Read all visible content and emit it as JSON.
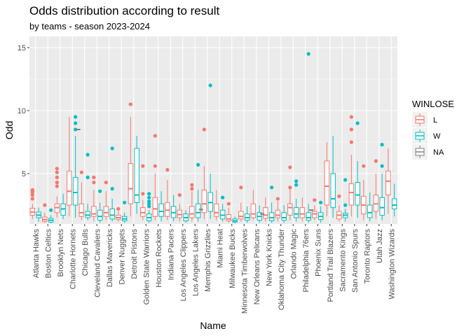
{
  "chart_data": {
    "type": "boxplot",
    "title": "Odds distribution according to result",
    "subtitle": "by teams - season 2023-2024",
    "xlabel": "Name",
    "ylabel": "Odd",
    "ylim": [
      1,
      15
    ],
    "y_ticks": [
      5,
      10,
      15
    ],
    "grid": true,
    "legend": {
      "title": "WINLOSE",
      "position": "right"
    },
    "colors": {
      "L": "#F8766D",
      "W": "#00BFC4",
      "NA": "#7F7F7F",
      "panel": "#EBEBEB",
      "grid": "#FFFFFF"
    },
    "categories": [
      "Atlanta Hawks",
      "Boston Celtics",
      "Brooklyn Nets",
      "Charlotte Hornets",
      "Chicago Bulls",
      "Cleveland Cavaliers",
      "Dallas Mavericks",
      "Denver Nuggets",
      "Detroit Pistons",
      "Golden State Warriors",
      "Houston Rockets",
      "Indiana Pacers",
      "Los Angeles Clippers",
      "Los Angeles Lakers",
      "Memphis Grizzlies",
      "Miami Heat",
      "Milwaukee Bucks",
      "Minnesota Timberwolves",
      "New Orleans Pelicans",
      "New York Knicks",
      "Oklahoma City Thunder",
      "Orlando Magic",
      "Philadelphia 76ers",
      "Phoenix Suns",
      "Portland Trail Blazers",
      "Sacramento Kings",
      "San Antonio Spurs",
      "Toronto Raptors",
      "Utah Jazz",
      "Washington Wizards"
    ],
    "series": [
      {
        "name": "L",
        "boxes": [
          {
            "whisk_lo": 1.4,
            "q1": 1.7,
            "med": 1.95,
            "q3": 2.25,
            "whisk_hi": 2.6,
            "outliers": [
              3.0,
              3.3,
              3.5,
              3.6,
              3.7
            ]
          },
          {
            "whisk_lo": 1.1,
            "q1": 1.2,
            "med": 1.35,
            "q3": 1.55,
            "whisk_hi": 1.9,
            "outliers": [
              2.5
            ]
          },
          {
            "whisk_lo": 1.5,
            "q1": 1.9,
            "med": 2.3,
            "q3": 2.6,
            "whisk_hi": 3.2,
            "outliers": [
              4.0,
              4.3,
              4.7,
              5.1,
              5.4
            ]
          },
          {
            "whisk_lo": 1.6,
            "q1": 2.5,
            "med": 3.6,
            "q3": 5.2,
            "whisk_hi": 9.5,
            "outliers": []
          },
          {
            "whisk_lo": 1.3,
            "q1": 1.6,
            "med": 1.9,
            "q3": 2.6,
            "whisk_hi": 4.3,
            "outliers": [
              5.1
            ]
          },
          {
            "whisk_lo": 1.2,
            "q1": 1.6,
            "med": 1.8,
            "q3": 2.4,
            "whisk_hi": 3.7,
            "outliers": [
              4.3,
              4.7
            ]
          },
          {
            "whisk_lo": 1.3,
            "q1": 1.6,
            "med": 1.9,
            "q3": 2.4,
            "whisk_hi": 3.6,
            "outliers": [
              4.3
            ]
          },
          {
            "whisk_lo": 1.2,
            "q1": 1.35,
            "med": 1.5,
            "q3": 1.7,
            "whisk_hi": 2.0,
            "outliers": [
              2.2
            ]
          },
          {
            "whisk_lo": 1.6,
            "q1": 2.6,
            "med": 3.8,
            "q3": 5.8,
            "whisk_hi": 9.5,
            "outliers": [
              10.5
            ]
          },
          {
            "whisk_lo": 1.3,
            "q1": 1.6,
            "med": 1.9,
            "q3": 2.3,
            "whisk_hi": 2.9,
            "outliers": [
              3.4,
              5.6
            ]
          },
          {
            "whisk_lo": 1.3,
            "q1": 1.6,
            "med": 2.2,
            "q3": 3.1,
            "whisk_hi": 5.0,
            "outliers": [
              5.6,
              8.0
            ]
          },
          {
            "whisk_lo": 1.3,
            "q1": 1.6,
            "med": 2.1,
            "q3": 2.7,
            "whisk_hi": 4.5,
            "outliers": [
              5.3
            ]
          },
          {
            "whisk_lo": 1.2,
            "q1": 1.5,
            "med": 1.75,
            "q3": 2.1,
            "whisk_hi": 2.6,
            "outliers": [
              3.3
            ]
          },
          {
            "whisk_lo": 1.2,
            "q1": 1.5,
            "med": 1.8,
            "q3": 2.4,
            "whisk_hi": 3.6,
            "outliers": [
              3.8,
              4.1
            ]
          },
          {
            "whisk_lo": 1.4,
            "q1": 1.9,
            "med": 2.6,
            "q3": 3.7,
            "whisk_hi": 5.6,
            "outliers": [
              8.5
            ]
          },
          {
            "whisk_lo": 1.3,
            "q1": 1.6,
            "med": 1.9,
            "q3": 2.6,
            "whisk_hi": 3.7,
            "outliers": []
          },
          {
            "whisk_lo": 1.1,
            "q1": 1.25,
            "med": 1.4,
            "q3": 1.75,
            "whisk_hi": 2.3,
            "outliers": [
              2.6
            ]
          },
          {
            "whisk_lo": 1.2,
            "q1": 1.4,
            "med": 1.6,
            "q3": 2.0,
            "whisk_hi": 2.7,
            "outliers": [
              3.9
            ]
          },
          {
            "whisk_lo": 1.3,
            "q1": 1.5,
            "med": 1.8,
            "q3": 2.6,
            "whisk_hi": 3.7,
            "outliers": []
          },
          {
            "whisk_lo": 1.2,
            "q1": 1.45,
            "med": 1.7,
            "q3": 2.3,
            "whisk_hi": 3.1,
            "outliers": []
          },
          {
            "whisk_lo": 1.2,
            "q1": 1.5,
            "med": 1.7,
            "q3": 2.1,
            "whisk_hi": 2.8,
            "outliers": [
              3.0
            ]
          },
          {
            "whisk_lo": 1.3,
            "q1": 1.7,
            "med": 2.3,
            "q3": 2.6,
            "whisk_hi": 3.8,
            "outliers": [
              3.9,
              5.5
            ]
          },
          {
            "whisk_lo": 1.2,
            "q1": 1.5,
            "med": 1.8,
            "q3": 2.3,
            "whisk_hi": 3.1,
            "outliers": []
          },
          {
            "whisk_lo": 1.3,
            "q1": 1.5,
            "med": 1.8,
            "q3": 2.0,
            "whisk_hi": 2.5,
            "outliers": [
              2.9
            ]
          },
          {
            "whisk_lo": 1.6,
            "q1": 2.5,
            "med": 4.0,
            "q3": 6.0,
            "whisk_hi": 7.5,
            "outliers": []
          },
          {
            "whisk_lo": 1.2,
            "q1": 1.4,
            "med": 1.7,
            "q3": 2.0,
            "whisk_hi": 2.5,
            "outliers": [
              3.2
            ]
          },
          {
            "whisk_lo": 1.6,
            "q1": 2.5,
            "med": 3.5,
            "q3": 4.2,
            "whisk_hi": 6.5,
            "outliers": [
              7.5,
              8.5,
              9.5
            ]
          },
          {
            "whisk_lo": 1.3,
            "q1": 1.8,
            "med": 2.5,
            "q3": 3.2,
            "whisk_hi": 4.5,
            "outliers": [
              5.6
            ]
          },
          {
            "whisk_lo": 1.4,
            "q1": 2.0,
            "med": 2.6,
            "q3": 3.3,
            "whisk_hi": 5.0,
            "outliers": [
              6.0
            ]
          },
          {
            "whisk_lo": 1.8,
            "q1": 3.3,
            "med": 4.4,
            "q3": 5.2,
            "whisk_hi": 7.0,
            "outliers": []
          }
        ]
      },
      {
        "name": "W",
        "boxes": [
          {
            "whisk_lo": 1.2,
            "q1": 1.5,
            "med": 1.7,
            "q3": 1.95,
            "whisk_hi": 2.3,
            "outliers": []
          },
          {
            "whisk_lo": 1.05,
            "q1": 1.15,
            "med": 1.3,
            "q3": 1.45,
            "whisk_hi": 1.7,
            "outliers": [
              2.1
            ]
          },
          {
            "whisk_lo": 1.4,
            "q1": 1.7,
            "med": 2.2,
            "q3": 2.6,
            "whisk_hi": 3.4,
            "outliers": []
          },
          {
            "whisk_lo": 1.5,
            "q1": 2.5,
            "med": 3.5,
            "q3": 4.7,
            "whisk_hi": 8.0,
            "outliers": [
              8.5,
              9.0,
              9.5
            ]
          },
          {
            "whisk_lo": 1.3,
            "q1": 1.5,
            "med": 1.7,
            "q3": 2.0,
            "whisk_hi": 2.6,
            "outliers": [
              4.7,
              6.5
            ]
          },
          {
            "whisk_lo": 1.1,
            "q1": 1.3,
            "med": 1.6,
            "q3": 2.1,
            "whisk_hi": 2.7,
            "outliers": [
              3.6
            ]
          },
          {
            "whisk_lo": 1.2,
            "q1": 1.4,
            "med": 1.7,
            "q3": 2.2,
            "whisk_hi": 3.0,
            "outliers": [
              3.8,
              7.0
            ]
          },
          {
            "whisk_lo": 1.1,
            "q1": 1.25,
            "med": 1.4,
            "q3": 1.6,
            "whisk_hi": 1.9,
            "outliers": [
              2.7
            ]
          },
          {
            "whisk_lo": 1.8,
            "q1": 2.7,
            "med": 3.3,
            "q3": 7.0,
            "whisk_hi": 8.0,
            "outliers": []
          },
          {
            "whisk_lo": 1.1,
            "q1": 1.25,
            "med": 1.5,
            "q3": 1.8,
            "whisk_hi": 2.1,
            "outliers": [
              2.4,
              2.6,
              2.8,
              3.1,
              3.4
            ]
          },
          {
            "whisk_lo": 1.2,
            "q1": 1.6,
            "med": 2.0,
            "q3": 2.6,
            "whisk_hi": 3.6,
            "outliers": []
          },
          {
            "whisk_lo": 1.2,
            "q1": 1.5,
            "med": 1.9,
            "q3": 2.4,
            "whisk_hi": 3.3,
            "outliers": []
          },
          {
            "whisk_lo": 1.1,
            "q1": 1.25,
            "med": 1.5,
            "q3": 1.8,
            "whisk_hi": 2.1,
            "outliers": []
          },
          {
            "whisk_lo": 1.2,
            "q1": 1.5,
            "med": 1.9,
            "q3": 2.6,
            "whisk_hi": 3.7,
            "outliers": [
              5.7
            ]
          },
          {
            "whisk_lo": 1.4,
            "q1": 2.0,
            "med": 2.7,
            "q3": 3.5,
            "whisk_hi": 5.0,
            "outliers": [
              12.0
            ]
          },
          {
            "whisk_lo": 1.2,
            "q1": 1.4,
            "med": 1.7,
            "q3": 2.1,
            "whisk_hi": 2.6,
            "outliers": [
              3.1
            ]
          },
          {
            "whisk_lo": 1.05,
            "q1": 1.15,
            "med": 1.25,
            "q3": 1.4,
            "whisk_hi": 1.6,
            "outliers": []
          },
          {
            "whisk_lo": 1.1,
            "q1": 1.3,
            "med": 1.5,
            "q3": 1.8,
            "whisk_hi": 2.4,
            "outliers": []
          },
          {
            "whisk_lo": 1.1,
            "q1": 1.3,
            "med": 1.6,
            "q3": 1.9,
            "whisk_hi": 2.5,
            "outliers": []
          },
          {
            "whisk_lo": 1.1,
            "q1": 1.25,
            "med": 1.5,
            "q3": 1.9,
            "whisk_hi": 2.7,
            "outliers": [
              3.9
            ]
          },
          {
            "whisk_lo": 1.1,
            "q1": 1.3,
            "med": 1.5,
            "q3": 1.9,
            "whisk_hi": 2.5,
            "outliers": []
          },
          {
            "whisk_lo": 1.2,
            "q1": 1.5,
            "med": 1.8,
            "q3": 2.3,
            "whisk_hi": 3.0,
            "outliers": [
              4.1,
              4.4
            ]
          },
          {
            "whisk_lo": 1.1,
            "q1": 1.3,
            "med": 1.5,
            "q3": 1.9,
            "whisk_hi": 2.6,
            "outliers": [
              14.5
            ]
          },
          {
            "whisk_lo": 1.1,
            "q1": 1.35,
            "med": 1.6,
            "q3": 1.9,
            "whisk_hi": 2.4,
            "outliers": [
              2.7
            ]
          },
          {
            "whisk_lo": 1.5,
            "q1": 2.3,
            "med": 3.0,
            "q3": 5.0,
            "whisk_hi": 8.0,
            "outliers": []
          },
          {
            "whisk_lo": 1.2,
            "q1": 1.5,
            "med": 1.7,
            "q3": 1.85,
            "whisk_hi": 2.2,
            "outliers": [
              2.5,
              4.5
            ]
          },
          {
            "whisk_lo": 1.5,
            "q1": 2.5,
            "med": 3.3,
            "q3": 4.3,
            "whisk_hi": 6.0,
            "outliers": [
              9.0
            ]
          },
          {
            "whisk_lo": 1.2,
            "q1": 1.5,
            "med": 1.9,
            "q3": 2.5,
            "whisk_hi": 3.5,
            "outliers": []
          },
          {
            "whisk_lo": 1.3,
            "q1": 1.7,
            "med": 2.3,
            "q3": 3.1,
            "whisk_hi": 5.0,
            "outliers": [
              5.6,
              7.3
            ]
          },
          {
            "whisk_lo": 1.6,
            "q1": 2.2,
            "med": 2.5,
            "q3": 3.0,
            "whisk_hi": 4.2,
            "outliers": []
          }
        ]
      },
      {
        "name": "NA",
        "marks": [
          {
            "category": "Charlotte Hornets",
            "value": 8.5
          },
          {
            "category": "Los Angeles Lakers",
            "value": 2.15
          },
          {
            "category": "New Orleans Pelicans",
            "value": 1.8
          },
          {
            "category": "Philadelphia 76ers",
            "value": 2.1
          }
        ]
      }
    ]
  }
}
